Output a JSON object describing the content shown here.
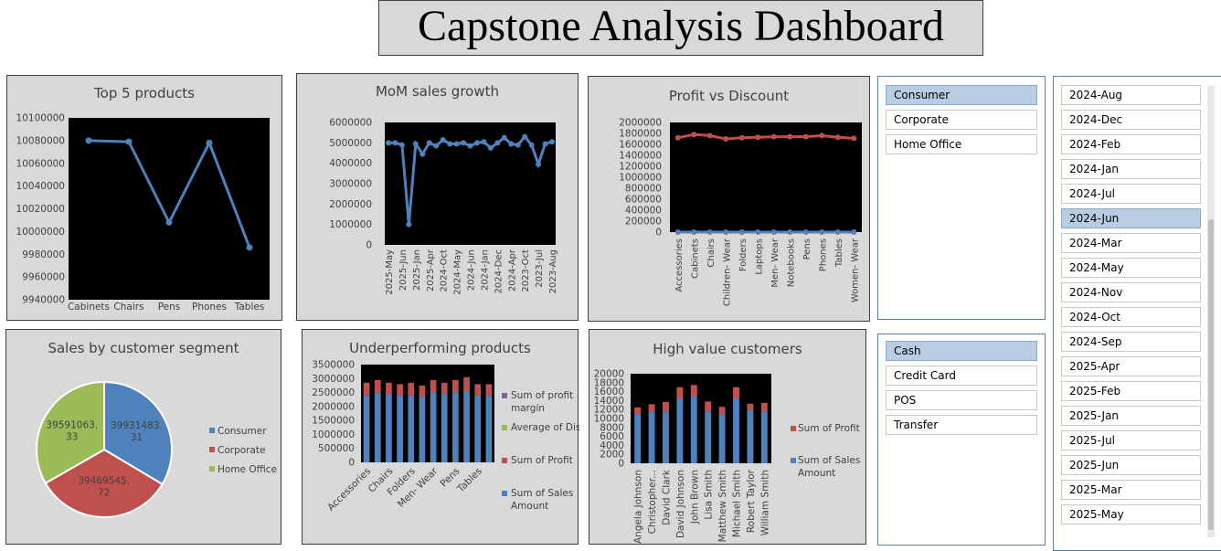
{
  "title": "Capstone Analysis Dashboard",
  "colors": {
    "blue": "#4f81bd",
    "red": "#c0504d",
    "green": "#9bbb59",
    "purple": "#8064a2",
    "plot_bg": "#000000",
    "panel_bg": "#d9d9d9"
  },
  "top5": {
    "title": "Top 5 products",
    "y_ticks": [
      "10100000",
      "10080000",
      "10060000",
      "10040000",
      "10020000",
      "10000000",
      "9980000",
      "9960000",
      "9940000"
    ],
    "chart_data": {
      "type": "line",
      "categories": [
        "Cabinets",
        "Chairs",
        "Pens",
        "Phones",
        "Tables"
      ],
      "values": [
        10080000,
        10079000,
        10008000,
        10078000,
        9986000
      ],
      "ylim": [
        9940000,
        10100000
      ]
    }
  },
  "mom": {
    "title": "MoM sales growth",
    "y_ticks": [
      "6000000",
      "5000000",
      "4000000",
      "3000000",
      "2000000",
      "1000000",
      "0"
    ],
    "x_labels": [
      "2025-May",
      "2025-Jun",
      "2025-Jan",
      "2025-Apr",
      "2024-Oct",
      "2024-May",
      "2024-Jun",
      "2024-Jan",
      "2024-Dec",
      "2024-Apr",
      "2023-Oct",
      "2023-Jul",
      "2023-Aug"
    ],
    "chart_data": {
      "type": "line",
      "values": [
        5000000,
        5000000,
        4900000,
        1000000,
        4950000,
        4450000,
        5000000,
        4850000,
        5150000,
        4950000,
        4950000,
        5000000,
        4850000,
        5000000,
        5050000,
        4750000,
        5000000,
        5250000,
        4950000,
        4900000,
        5300000,
        4900000,
        3950000,
        4950000,
        5050000
      ],
      "ylim": [
        0,
        6000000
      ]
    }
  },
  "profit_discount": {
    "title": "Profit vs Discount",
    "y_ticks": [
      "2000000",
      "1800000",
      "1600000",
      "1400000",
      "1200000",
      "1000000",
      "800000",
      "600000",
      "400000",
      "200000",
      "0"
    ],
    "chart_data": {
      "type": "line",
      "categories": [
        "Accessories",
        "Cabinets",
        "Chairs",
        "Children- Wear",
        "Folders",
        "Laptops",
        "Men- Wear",
        "Notebooks",
        "Pens",
        "Phones",
        "Tables",
        "Women- Wear"
      ],
      "series": [
        {
          "values": [
            1720000,
            1780000,
            1760000,
            1700000,
            1720000,
            1730000,
            1740000,
            1740000,
            1740000,
            1760000,
            1730000,
            1710000
          ]
        },
        {
          "values": [
            0,
            0,
            0,
            0,
            0,
            0,
            0,
            0,
            0,
            0,
            0,
            0
          ]
        }
      ],
      "ylim": [
        0,
        2000000
      ]
    }
  },
  "segment": {
    "title": "Sales by customer segment",
    "chart_data": {
      "type": "pie",
      "categories": [
        "Consumer",
        "Corporate",
        "Home Office"
      ],
      "values": [
        39931483.31,
        39469545.72,
        39591063.33
      ]
    },
    "labels": [
      "39931483.\n31",
      "39469545.\n72",
      "39591063.\n33"
    ],
    "legend": [
      "Consumer",
      "Corporate",
      "Home Office"
    ]
  },
  "underperf": {
    "title": "Underperforming products",
    "y_ticks": [
      "3500000",
      "3000000",
      "2500000",
      "2000000",
      "1500000",
      "1000000",
      "500000",
      "0"
    ],
    "x_labels": [
      "Accessories",
      "Chairs",
      "Folders",
      "Men- Wear",
      "Pens",
      "Tables"
    ],
    "legend": [
      "Sum of profit margin",
      "Average of Discount",
      "Sum of Profit",
      "Sum of Sales Amount"
    ],
    "chart_data": {
      "type": "bar",
      "stacked": true,
      "categories_count": 12,
      "series": [
        {
          "name": "Sum of Sales Amount",
          "values": [
            2400000,
            2500000,
            2450000,
            2400000,
            2400000,
            2350000,
            2500000,
            2450000,
            2500000,
            2550000,
            2400000,
            2400000
          ]
        },
        {
          "name": "Sum of Profit",
          "values": [
            450000,
            450000,
            400000,
            400000,
            450000,
            400000,
            450000,
            400000,
            450000,
            500000,
            400000,
            400000
          ]
        }
      ],
      "ylim": [
        0,
        3500000
      ]
    }
  },
  "highvalue": {
    "title": "High value customers",
    "y_ticks": [
      "20000",
      "18000",
      "16000",
      "14000",
      "12000",
      "10000",
      "8000",
      "6000",
      "4000",
      "2000",
      "0"
    ],
    "x_labels": [
      "Angela Johnson",
      "Christopher...",
      "David Clark",
      "David Johnson",
      "John Brown",
      "Lisa Smith",
      "Matthew Smith",
      "Michael Smith",
      "Robert Taylor",
      "William Smith"
    ],
    "legend": [
      "Sum of Profit",
      "Sum of Sales Amount"
    ],
    "chart_data": {
      "type": "bar",
      "stacked": true,
      "series": [
        {
          "name": "Sum of Sales Amount",
          "values": [
            11000,
            11500,
            11500,
            14500,
            15000,
            11500,
            11000,
            14500,
            12000,
            11500
          ]
        },
        {
          "name": "Sum of Profit",
          "values": [
            1500,
            1700,
            2200,
            2500,
            2500,
            2300,
            1600,
            2500,
            1300,
            2000
          ]
        }
      ],
      "ylim": [
        0,
        20000
      ]
    }
  },
  "slicer_segment": {
    "items": [
      {
        "label": "Consumer",
        "selected": true
      },
      {
        "label": "Corporate",
        "selected": false
      },
      {
        "label": "Home Office",
        "selected": false
      }
    ]
  },
  "slicer_payment": {
    "items": [
      {
        "label": "Cash",
        "selected": true
      },
      {
        "label": "Credit Card",
        "selected": false
      },
      {
        "label": "POS",
        "selected": false
      },
      {
        "label": "Transfer",
        "selected": false
      }
    ]
  },
  "slicer_month": {
    "items": [
      {
        "label": "2024-Aug",
        "selected": false
      },
      {
        "label": "2024-Dec",
        "selected": false
      },
      {
        "label": "2024-Feb",
        "selected": false
      },
      {
        "label": "2024-Jan",
        "selected": false
      },
      {
        "label": "2024-Jul",
        "selected": false
      },
      {
        "label": "2024-Jun",
        "selected": true
      },
      {
        "label": "2024-Mar",
        "selected": false
      },
      {
        "label": "2024-May",
        "selected": false
      },
      {
        "label": "2024-Nov",
        "selected": false
      },
      {
        "label": "2024-Oct",
        "selected": false
      },
      {
        "label": "2024-Sep",
        "selected": false
      },
      {
        "label": "2025-Apr",
        "selected": false
      },
      {
        "label": "2025-Feb",
        "selected": false
      },
      {
        "label": "2025-Jan",
        "selected": false
      },
      {
        "label": "2025-Jul",
        "selected": false
      },
      {
        "label": "2025-Jun",
        "selected": false
      },
      {
        "label": "2025-Mar",
        "selected": false
      },
      {
        "label": "2025-May",
        "selected": false
      }
    ]
  }
}
